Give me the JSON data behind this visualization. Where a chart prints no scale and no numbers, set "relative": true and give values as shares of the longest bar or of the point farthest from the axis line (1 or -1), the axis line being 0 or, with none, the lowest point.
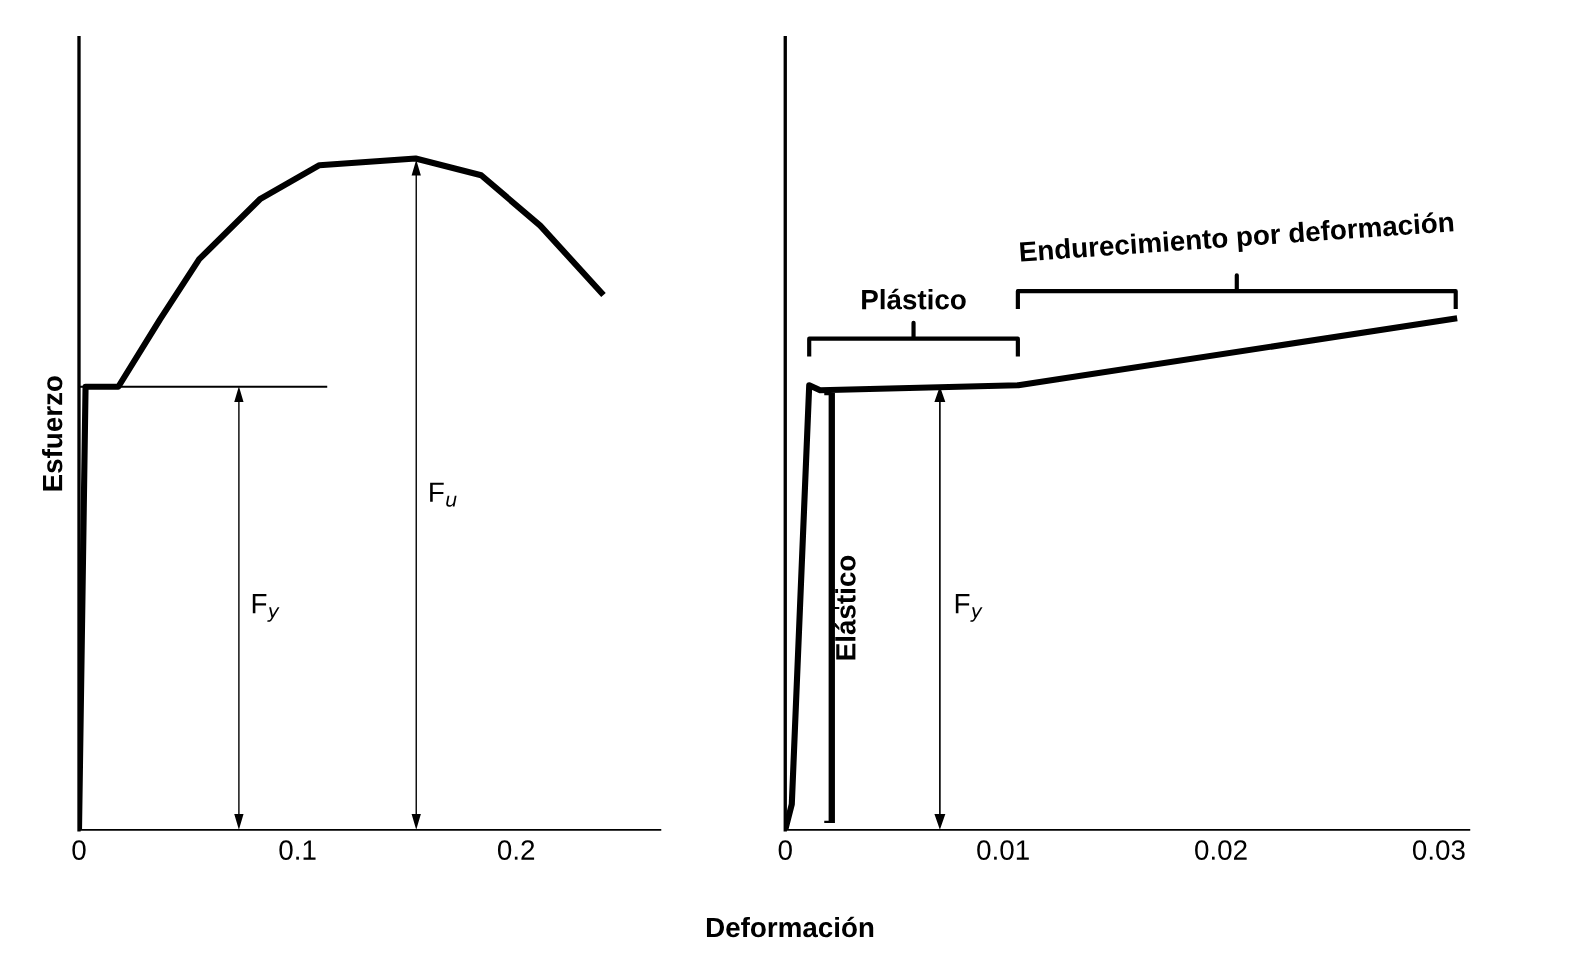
{
  "chart_data": [
    {
      "type": "line",
      "relative": true,
      "ylabel": "Esfuerzo",
      "xlabel": "Deformación",
      "tick_labels": "x",
      "xlim": [
        0,
        0.266
      ],
      "xticks": [
        0,
        0.1,
        0.2
      ],
      "series": [
        {
          "color": "#000000",
          "x": [
            0,
            0.003,
            0.018,
            0.037,
            0.055,
            0.083,
            0.11,
            0.154,
            0.184,
            0.211,
            0.239
          ],
          "values": [
            0,
            0.66,
            0.66,
            0.76,
            0.85,
            0.94,
            0.99,
            1.0,
            0.975,
            0.9,
            0.8
          ]
        }
      ],
      "ref_lines": [
        {
          "axis": "y",
          "value": 0.66
        }
      ],
      "annotations": [
        "F$_{y}$",
        "F$_{u}$"
      ]
    },
    {
      "type": "line",
      "relative": true,
      "tick_labels": "x",
      "xlim": [
        0,
        0.0314
      ],
      "xticks": [
        0,
        0.01,
        0.02,
        0.03
      ],
      "series": [
        {
          "color": "#000000",
          "x": [
            0,
            0.0003,
            0.0011,
            0.0016,
            0.0107,
            0.0307
          ],
          "values": [
            0,
            0.05,
            0.87,
            0.86,
            0.87,
            1.0
          ]
        }
      ],
      "annotations": [
        "F$_{y}$",
        "Plástico",
        "Endurecimiento por deformación",
        "Elástico"
      ]
    }
  ]
}
